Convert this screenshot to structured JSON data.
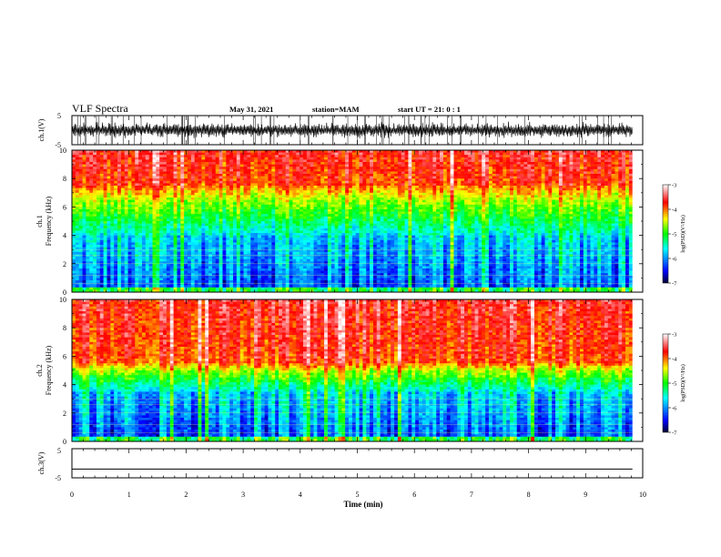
{
  "header": {
    "title": "VLF Spectra",
    "date": "May 31, 2021",
    "station": "station=MAM",
    "start": "start UT =  21: 0 : 1"
  },
  "colors": {
    "colormap": [
      "#000033",
      "#0000ff",
      "#00ffff",
      "#00ff00",
      "#ffff00",
      "#ff0000",
      "#ffffff"
    ],
    "axis": "#000000",
    "trace": "#000000"
  },
  "chart_data": [
    {
      "type": "line",
      "panel": "ch1-waveform",
      "ylabel": "ch.1(V)",
      "ylim": [
        -5,
        5
      ],
      "yticks": [
        "5",
        "-5"
      ],
      "xlim": [
        0,
        10
      ],
      "description_values": {
        "envelope_min": -2.5,
        "envelope_max": 2.5
      }
    },
    {
      "type": "heatmap",
      "panel": "ch1-spectrogram",
      "ylabel": "ch.1\nFrequency (kHz)",
      "ylabel_line1": "ch.1",
      "ylabel_line2": "Frequency (kHz)",
      "ylim": [
        0,
        10
      ],
      "yticks": [
        "0",
        "2",
        "4",
        "6",
        "8",
        "10"
      ],
      "xlim": [
        0,
        9.82
      ],
      "colorbar": {
        "label": "log(PSD)(V²/Hz)",
        "range": [
          -7,
          -3
        ],
        "ticks": [
          "-3",
          "-4",
          "-5",
          "-6",
          "-7"
        ]
      },
      "profile": {
        "low_cutoff_khz": 0.4,
        "blue_band_khz": [
          0.5,
          4.0
        ],
        "green_band_khz": [
          4.0,
          6.5
        ],
        "red_band_khz": [
          7.5,
          10
        ]
      }
    },
    {
      "type": "heatmap",
      "panel": "ch2-spectrogram",
      "ylabel": "ch.2\nFrequency (kHz)",
      "ylabel_line1": "ch.2",
      "ylabel_line2": "Frequency (kHz)",
      "ylim": [
        0,
        10
      ],
      "yticks": [
        "0",
        "2",
        "4",
        "6",
        "8",
        "10"
      ],
      "xlim": [
        0,
        9.82
      ],
      "colorbar": {
        "label": "log(PSD)(V²/Hz)",
        "range": [
          -7,
          -3
        ],
        "ticks": [
          "-3",
          "-4",
          "-5",
          "-6",
          "-7"
        ]
      },
      "profile": {
        "low_cutoff_khz": 0.4,
        "blue_band_khz": [
          0.5,
          3.5
        ],
        "green_band_khz": [
          3.5,
          5.0
        ],
        "red_band_khz": [
          5.5,
          10
        ]
      }
    },
    {
      "type": "line",
      "panel": "ch3-waveform",
      "ylabel": "ch.3(V)",
      "ylim": [
        -5,
        5
      ],
      "yticks": [
        "5",
        "-5"
      ],
      "xlim": [
        0,
        10
      ],
      "x": [
        0,
        9.82
      ],
      "y": [
        -2,
        -2
      ]
    }
  ],
  "xaxis": {
    "label": "Time (min)",
    "range": [
      0,
      10
    ],
    "ticks": [
      "0",
      "1",
      "2",
      "3",
      "4",
      "5",
      "6",
      "7",
      "8",
      "9",
      "10"
    ]
  }
}
